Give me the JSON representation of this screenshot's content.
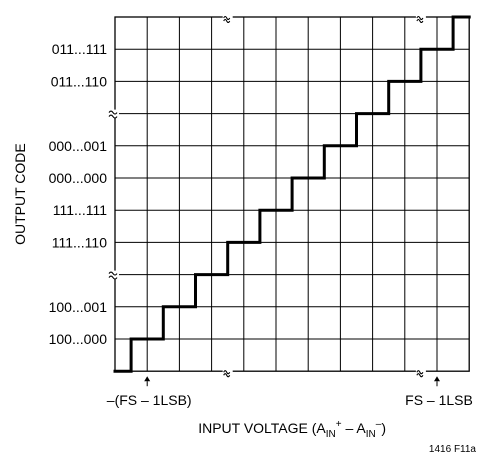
{
  "chart_data": {
    "type": "line",
    "step": true,
    "title": "",
    "xlabel": {
      "text": "INPUT VOLTAGE (A",
      "sub1": "IN",
      "sup1": "+",
      "mid": " – A",
      "sub2": "IN",
      "sup2": "–",
      "end": ")"
    },
    "ylabel": "OUTPUT CODE",
    "x_annotations": [
      "–(FS – 1LSB)",
      "FS – 1LSB"
    ],
    "y_tick_labels": [
      "011...111",
      "011...110",
      "000...001",
      "000...000",
      "111...111",
      "111...110",
      "100...001",
      "100...000"
    ],
    "y_tick_rows": [
      1,
      2,
      4,
      5,
      6,
      7,
      9,
      10
    ],
    "grid": true,
    "axis_breaks": {
      "x_cols": [
        3,
        9
      ],
      "y_rows": [
        3,
        8
      ]
    },
    "series": [
      {
        "x": [
          0,
          0.5,
          0.5,
          1.5,
          1.5,
          2.5,
          2.5,
          3.5,
          3.5,
          4.5,
          4.5,
          5.5,
          5.5,
          6.5,
          6.5,
          7.5,
          7.5,
          8.5,
          8.5,
          9.5,
          9.5,
          10.5,
          10.5,
          11
        ],
        "y": [
          11,
          11,
          10,
          10,
          9,
          9,
          8,
          8,
          7,
          7,
          6,
          6,
          5,
          5,
          4,
          4,
          3,
          3,
          2,
          2,
          1,
          1,
          0,
          0
        ]
      }
    ],
    "arrow_cols": [
      1,
      10
    ]
  },
  "figure_id": "1416 F11a"
}
